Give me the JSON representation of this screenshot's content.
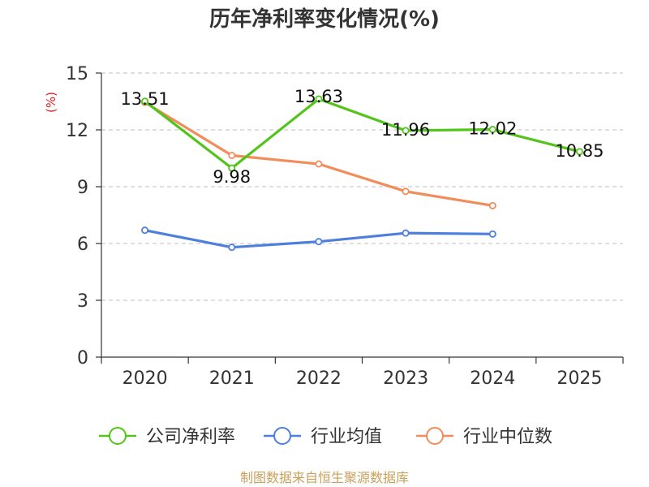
{
  "chart_data": {
    "type": "line",
    "title": "历年净利率变化情况(%)",
    "ylabel": "(%)",
    "xlabel": "",
    "categories": [
      "2020",
      "2021",
      "2022",
      "2023",
      "2024",
      "2025"
    ],
    "ylim": [
      0,
      15
    ],
    "yticks": [
      0,
      3,
      6,
      9,
      12,
      15
    ],
    "grid": true,
    "legend_position": "bottom",
    "series": [
      {
        "name": "公司净利率",
        "color": "#52c41a",
        "values": [
          13.51,
          9.98,
          13.63,
          11.96,
          12.02,
          10.85
        ],
        "labels": [
          "13.51",
          "9.98",
          "13.63",
          "11.96",
          "12.02",
          "10.85"
        ]
      },
      {
        "name": "行业均值",
        "color": "#4e7fdc",
        "values": [
          6.7,
          5.8,
          6.1,
          6.55,
          6.5,
          null
        ]
      },
      {
        "name": "行业中位数",
        "color": "#f28c5a",
        "values": [
          13.45,
          10.65,
          10.2,
          8.75,
          8.0,
          null
        ]
      }
    ]
  },
  "source_text": "制图数据来自恒生聚源数据库",
  "colors": {
    "ylabel": "#e02020",
    "source": "#c8a05a",
    "grid": "#cccccc",
    "axis": "#333333"
  }
}
